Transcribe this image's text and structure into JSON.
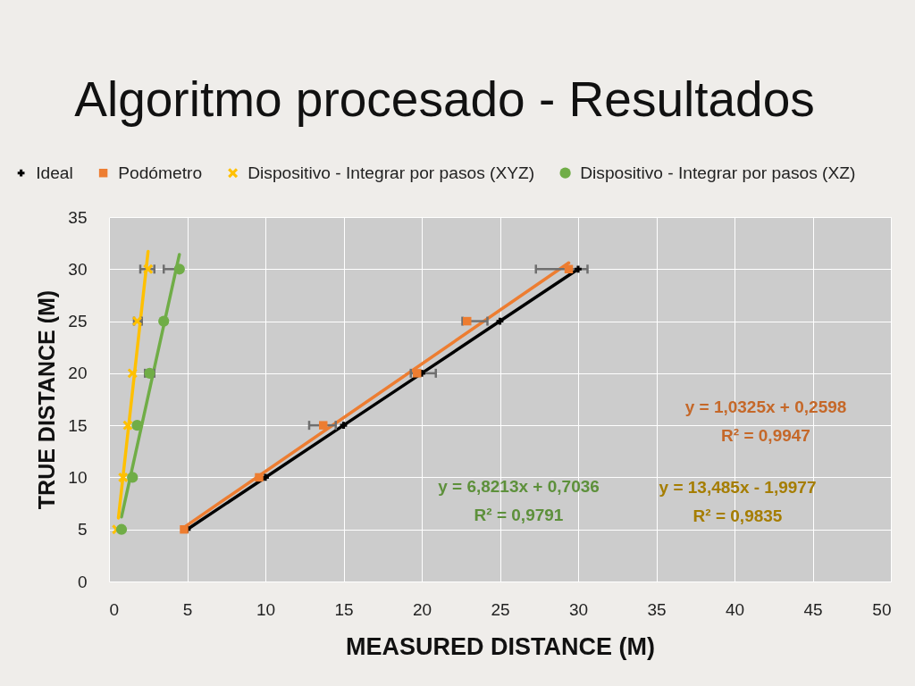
{
  "chart_data": {
    "type": "scatter",
    "title": "Algoritmo procesado - Resultados",
    "xlabel": "MEASURED DISTANCE (M)",
    "ylabel": "TRUE DISTANCE (M)",
    "xlim": [
      0,
      50
    ],
    "xticks": [
      0,
      5,
      10,
      15,
      20,
      25,
      30,
      35,
      40,
      45,
      50
    ],
    "ylim": [
      0,
      35
    ],
    "yticks": [
      0,
      5,
      10,
      15,
      20,
      25,
      30,
      35
    ],
    "grid": true,
    "legend": "top",
    "series": [
      {
        "name": "Ideal",
        "type": "line",
        "line_style": "solid",
        "marker": "cross",
        "color": "#000000",
        "x": [
          5,
          10,
          15,
          20,
          25,
          30
        ],
        "values": [
          5,
          10,
          15,
          20,
          25,
          30
        ]
      },
      {
        "type": "line",
        "line_style": "solid",
        "color": "#ed7d31",
        "x": [
          4.8,
          29.4
        ],
        "values": [
          5.2,
          30.6
        ]
      },
      {
        "type": "line",
        "line_style": "solid",
        "color": "#70ad47",
        "x": [
          0.8,
          4.5
        ],
        "values": [
          6.2,
          31.4
        ]
      },
      {
        "type": "line",
        "line_style": "solid",
        "color": "#ffc000",
        "x": [
          0.6,
          2.5
        ],
        "values": [
          6.1,
          31.7
        ]
      },
      {
        "name": "Podómetro",
        "marker": "square",
        "color": "#ed7d31",
        "x": [
          4.8,
          9.6,
          13.7,
          19.7,
          22.9,
          29.4
        ],
        "values": [
          5,
          10,
          15,
          20,
          25,
          30
        ],
        "xerrors": [
          null,
          null,
          [
            12.8,
            14.5
          ],
          [
            19.3,
            20.9
          ],
          [
            22.6,
            24.2
          ],
          [
            27.3,
            30.6
          ]
        ]
      },
      {
        "name": "Dispositivo - Integrar por pasos (XYZ)",
        "marker": "cross",
        "color": "#ffc000",
        "x": [
          0.5,
          0.9,
          1.2,
          1.5,
          1.8,
          2.5
        ],
        "values": [
          5,
          10,
          15,
          20,
          25,
          30
        ],
        "xerrors": [
          null,
          null,
          null,
          null,
          [
            1.6,
            2.1
          ],
          [
            2.0,
            2.9
          ]
        ]
      },
      {
        "name": "Dispositivo - Integrar por pasos (XZ)",
        "marker": "circle",
        "color": "#70ad47",
        "x": [
          0.8,
          1.5,
          1.8,
          2.6,
          3.5,
          4.5
        ],
        "values": [
          5,
          10,
          15,
          20,
          25,
          30
        ],
        "xerrors": [
          null,
          null,
          null,
          [
            2.3,
            2.9
          ],
          null,
          [
            3.5,
            4.6
          ]
        ]
      }
    ],
    "annotations": [
      "y = 1,0325x + 0,2598\nR² = 0,9947",
      "y = 6,8213x + 0,7036\nR² = 0,9791",
      "y = 13,485x - 1,9977\nR² = 0,9835"
    ]
  }
}
